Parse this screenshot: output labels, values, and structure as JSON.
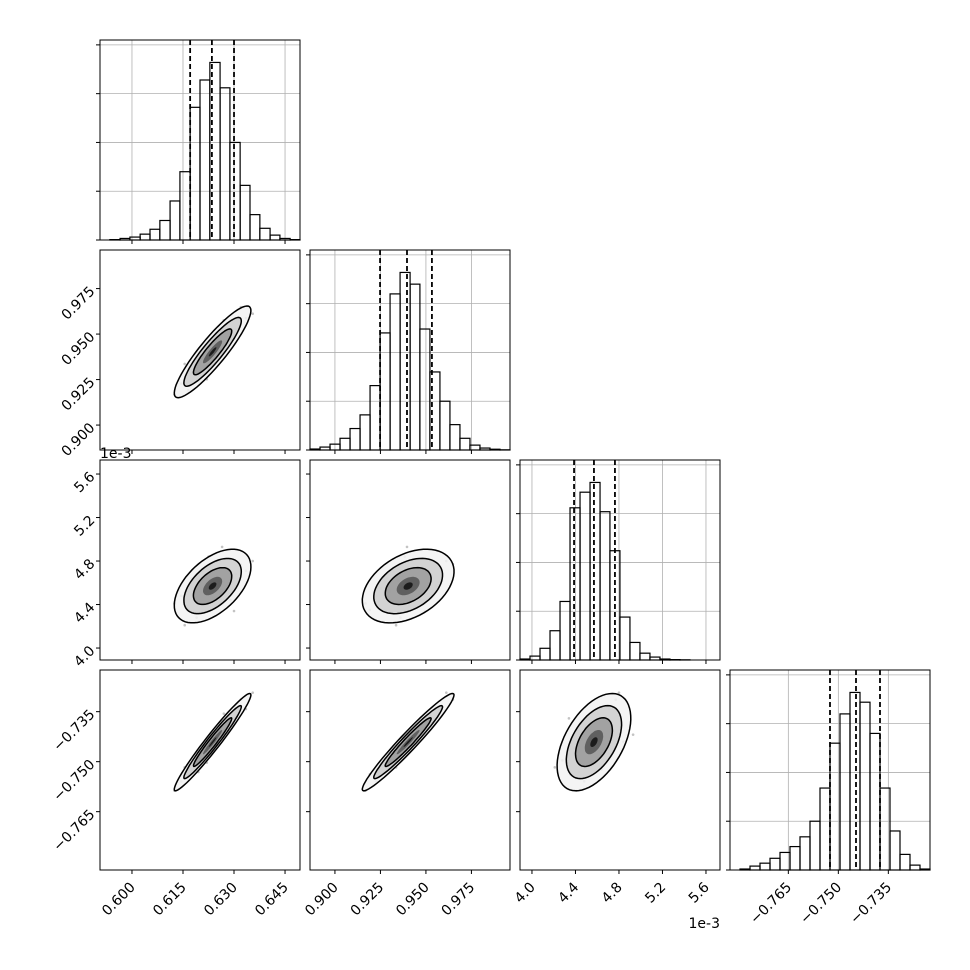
{
  "chart_data": {
    "type": "corner",
    "color": "#000000",
    "grid": true,
    "hist_ylim": [
      0,
      1025
    ],
    "hist_yticks": [
      0,
      250,
      500,
      750,
      1000
    ],
    "params": [
      {
        "lim": [
          0.5906,
          0.6494
        ],
        "ticks": [
          {
            "value": 0.6,
            "label": "0.600"
          },
          {
            "value": 0.615,
            "label": "0.615"
          },
          {
            "value": 0.63,
            "label": "0.630"
          },
          {
            "value": 0.645,
            "label": "0.645"
          }
        ],
        "bins": [
          0.5906,
          0.5935,
          0.5965,
          0.5994,
          0.6024,
          0.6053,
          0.6082,
          0.6112,
          0.6141,
          0.6171,
          0.62,
          0.6229,
          0.6259,
          0.6288,
          0.6318,
          0.6347,
          0.6376,
          0.6406,
          0.6435,
          0.6465,
          0.6494
        ],
        "counts": [
          0,
          2,
          8,
          15,
          30,
          55,
          100,
          200,
          350,
          680,
          820,
          910,
          780,
          500,
          280,
          130,
          60,
          25,
          8,
          2
        ],
        "quantiles": [
          0.6171,
          0.6235,
          0.63
        ],
        "samples": [
          0.6245,
          0.618,
          0.6305,
          0.6215,
          0.6275,
          0.6145,
          0.6235,
          0.6335,
          0.62,
          0.626,
          0.6225,
          0.629,
          0.6165,
          0.625,
          0.619,
          0.632,
          0.623,
          0.6265,
          0.6125,
          0.628,
          0.621,
          0.63,
          0.6175,
          0.624,
          0.6355,
          0.622,
          0.627,
          0.6155,
          0.6255,
          0.6195
        ]
      },
      {
        "lim": [
          0.8863,
          0.9962
        ],
        "ticks": [
          {
            "value": 0.9,
            "label": "0.900"
          },
          {
            "value": 0.925,
            "label": "0.925"
          },
          {
            "value": 0.95,
            "label": "0.950"
          },
          {
            "value": 0.975,
            "label": "0.975"
          }
        ],
        "bins": [
          0.8863,
          0.8918,
          0.8973,
          0.9028,
          0.9083,
          0.9138,
          0.9193,
          0.9248,
          0.9303,
          0.9358,
          0.9413,
          0.9467,
          0.9522,
          0.9577,
          0.9632,
          0.9687,
          0.9742,
          0.9797,
          0.9852,
          0.9907,
          0.9962
        ],
        "counts": [
          5,
          15,
          30,
          60,
          110,
          180,
          330,
          600,
          800,
          910,
          850,
          620,
          400,
          250,
          130,
          60,
          25,
          10,
          4,
          1
        ],
        "quantiles": [
          0.9248,
          0.9396,
          0.9533
        ],
        "samples": [
          0.9456,
          0.93,
          0.9528,
          0.9408,
          0.9432,
          0.9228,
          0.9348,
          0.9588,
          0.9276,
          0.9504,
          0.9384,
          0.9468,
          0.9192,
          0.9372,
          0.936,
          0.9648,
          0.9444,
          0.9396,
          0.9168,
          0.9552,
          0.9324,
          0.9492,
          0.9288,
          0.942,
          0.9612,
          0.9252,
          0.9576,
          0.9336,
          0.948,
          0.924
        ]
      },
      {
        "lim": [
          3.89,
          5.729
        ],
        "offset_label": "1e-3",
        "ticks": [
          {
            "value": 4,
            "label": "4.0"
          },
          4.4,
          4.8,
          5.2,
          5.6
        ],
        "bins": [
          3.89,
          3.982,
          4.074,
          4.166,
          4.258,
          4.35,
          4.442,
          4.534,
          4.626,
          4.717,
          4.809,
          4.901,
          4.993,
          5.085,
          5.177,
          5.269,
          5.361,
          5.453,
          5.545,
          5.637,
          5.729
        ],
        "counts": [
          5,
          20,
          60,
          150,
          300,
          780,
          860,
          910,
          760,
          560,
          220,
          90,
          35,
          15,
          5,
          2,
          1,
          0,
          0,
          0
        ],
        "quantiles": [
          4.387,
          4.57,
          4.763
        ],
        "samples": [
          4.59,
          4.52,
          4.68,
          4.39,
          4.73,
          4.48,
          4.62,
          4.71,
          4.61,
          4.5,
          4.84,
          4.44,
          4.35,
          4.66,
          4.28,
          4.77,
          4.53,
          4.93,
          4.41,
          4.57,
          4.7,
          4.34,
          4.64,
          4.46,
          4.8,
          4.55,
          4.61,
          4.21,
          4.75,
          4.43
        ]
      },
      {
        "lim": [
          -0.7825,
          -0.7225
        ],
        "ticks": [
          {
            "value": -0.765,
            "label": "−0.765"
          },
          {
            "value": -0.75,
            "label": "−0.750"
          },
          {
            "value": -0.735,
            "label": "−0.735"
          }
        ],
        "bins": [
          -0.7825,
          -0.7795,
          -0.7765,
          -0.7735,
          -0.7705,
          -0.7675,
          -0.7645,
          -0.7615,
          -0.7585,
          -0.7555,
          -0.7525,
          -0.7495,
          -0.7465,
          -0.7435,
          -0.7405,
          -0.7375,
          -0.7345,
          -0.7315,
          -0.7285,
          -0.7255,
          -0.7225
        ],
        "counts": [
          0,
          5,
          20,
          35,
          60,
          90,
          120,
          170,
          250,
          420,
          650,
          800,
          910,
          860,
          700,
          420,
          200,
          80,
          25,
          5
        ],
        "quantiles": [
          -0.7525,
          -0.7447,
          -0.7375
        ],
        "samples": [
          -0.7419,
          -0.751,
          -0.7363,
          -0.7461,
          -0.7405,
          -0.7559,
          -0.7454,
          -0.7342,
          -0.7489,
          -0.7398,
          -0.744,
          -0.7384,
          -0.7538,
          -0.7447,
          -0.7496,
          -0.7314,
          -0.7426,
          -0.7419,
          -0.7587,
          -0.7377,
          -0.7475,
          -0.737,
          -0.7524,
          -0.7433,
          -0.7293,
          -0.7503,
          -0.7356,
          -0.7517,
          -0.7412,
          -0.7531
        ]
      }
    ]
  }
}
